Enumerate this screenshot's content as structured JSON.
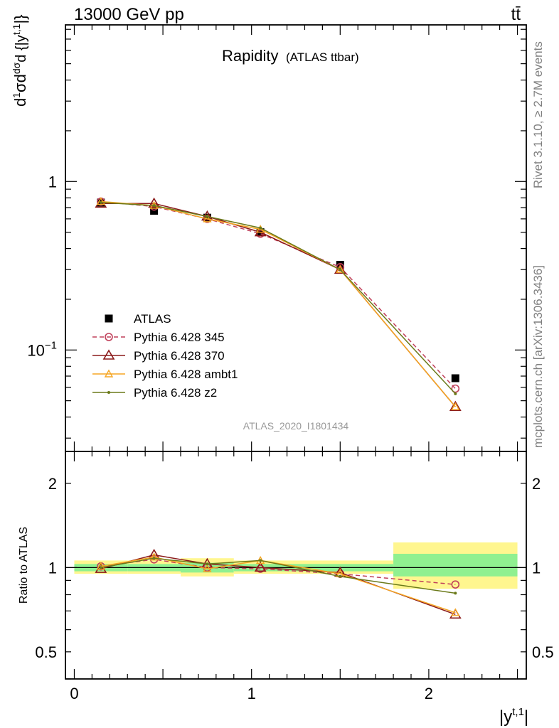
{
  "header": {
    "left": "13000 GeV pp",
    "right": "tt̄"
  },
  "side_labels": {
    "rivet": "Rivet 3.1.10, ≥ 2.7M events",
    "mcplots": "mcplots.cern.ch [arXiv:1306.3436]"
  },
  "colors": {
    "atlas": "#000000",
    "p345": "#c0405a",
    "p370": "#8b1a1a",
    "ambt1": "#f5a623",
    "z2": "#6b7a1a",
    "band_inner": "#90f090",
    "band_outer": "#fff68f"
  },
  "chart_data": [
    {
      "type": "scatter",
      "title": "Rapidity",
      "subtitle": "(ATLAS ttbar)",
      "analysis": "ATLAS_2020_I1801434",
      "ylabel": "d1/σdσ^{fid}/d {|y^{t,1}|}",
      "yscale": "log",
      "ylim": [
        0.025,
        8.5
      ],
      "xlim": [
        -0.05,
        2.55
      ],
      "y_ticks": [
        {
          "value": 0.1,
          "label": "10^-1"
        },
        {
          "value": 1,
          "label": "1"
        }
      ],
      "legend_position": "bottom-left",
      "x": [
        0.15,
        0.45,
        0.75,
        1.05,
        1.5,
        2.15
      ],
      "series": [
        {
          "name": "ATLAS",
          "key": "atlas",
          "values": [
            0.75,
            0.67,
            0.61,
            0.5,
            0.32,
            0.068
          ]
        },
        {
          "name": "Pythia 6.428 345",
          "key": "p345",
          "values": [
            0.76,
            0.71,
            0.6,
            0.49,
            0.31,
            0.059
          ]
        },
        {
          "name": "Pythia 6.428 370",
          "key": "p370",
          "values": [
            0.74,
            0.74,
            0.62,
            0.5,
            0.3,
            0.046
          ]
        },
        {
          "name": "Pythia 6.428 ambt1",
          "key": "ambt1",
          "values": [
            0.76,
            0.72,
            0.6,
            0.52,
            0.3,
            0.046
          ]
        },
        {
          "name": "Pythia 6.428 z2",
          "key": "z2",
          "values": [
            0.75,
            0.72,
            0.62,
            0.53,
            0.3,
            0.055
          ]
        }
      ]
    },
    {
      "type": "scatter",
      "ylabel": "Ratio to ATLAS",
      "xlabel": "|y^{t,1}|",
      "yscale": "log",
      "ylim": [
        0.4,
        2.6
      ],
      "xlim": [
        -0.05,
        2.55
      ],
      "y_ticks": [
        {
          "value": 0.5,
          "label": "0.5"
        },
        {
          "value": 1,
          "label": "1"
        },
        {
          "value": 2,
          "label": "2"
        }
      ],
      "x_ticks": [
        {
          "value": 0,
          "label": "0"
        },
        {
          "value": 1,
          "label": "1"
        },
        {
          "value": 2,
          "label": "2"
        }
      ],
      "bands": [
        {
          "x0": 0.0,
          "x1": 0.3,
          "inner": [
            0.97,
            1.03
          ],
          "outer": [
            0.95,
            1.06
          ]
        },
        {
          "x0": 0.3,
          "x1": 0.6,
          "inner": [
            0.97,
            1.03
          ],
          "outer": [
            0.95,
            1.06
          ]
        },
        {
          "x0": 0.6,
          "x1": 0.9,
          "inner": [
            0.96,
            1.04
          ],
          "outer": [
            0.93,
            1.08
          ]
        },
        {
          "x0": 0.9,
          "x1": 1.2,
          "inner": [
            0.97,
            1.03
          ],
          "outer": [
            0.95,
            1.06
          ]
        },
        {
          "x0": 1.2,
          "x1": 1.8,
          "inner": [
            0.97,
            1.03
          ],
          "outer": [
            0.95,
            1.06
          ]
        },
        {
          "x0": 1.8,
          "x1": 2.5,
          "inner": [
            0.93,
            1.12
          ],
          "outer": [
            0.84,
            1.23
          ]
        }
      ],
      "x": [
        0.15,
        0.45,
        0.75,
        1.05,
        1.5,
        2.15
      ],
      "series": [
        {
          "name": "Pythia 6.428 345",
          "key": "p345",
          "values": [
            1.01,
            1.07,
            1.0,
            0.99,
            0.95,
            0.87
          ]
        },
        {
          "name": "Pythia 6.428 370",
          "key": "p370",
          "values": [
            0.99,
            1.11,
            1.03,
            1.0,
            0.96,
            0.68
          ]
        },
        {
          "name": "Pythia 6.428 ambt1",
          "key": "ambt1",
          "values": [
            1.01,
            1.09,
            0.99,
            1.06,
            0.95,
            0.69
          ]
        },
        {
          "name": "Pythia 6.428 z2",
          "key": "z2",
          "values": [
            1.0,
            1.08,
            1.03,
            1.06,
            0.93,
            0.81
          ]
        }
      ]
    }
  ]
}
